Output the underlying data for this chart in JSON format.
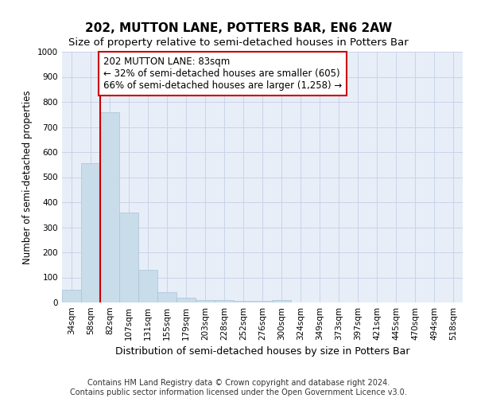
{
  "title": "202, MUTTON LANE, POTTERS BAR, EN6 2AW",
  "subtitle": "Size of property relative to semi-detached houses in Potters Bar",
  "xlabel": "Distribution of semi-detached houses by size in Potters Bar",
  "ylabel": "Number of semi-detached properties",
  "categories": [
    "34sqm",
    "58sqm",
    "82sqm",
    "107sqm",
    "131sqm",
    "155sqm",
    "179sqm",
    "203sqm",
    "228sqm",
    "252sqm",
    "276sqm",
    "300sqm",
    "324sqm",
    "349sqm",
    "373sqm",
    "397sqm",
    "421sqm",
    "445sqm",
    "470sqm",
    "494sqm",
    "518sqm"
  ],
  "values": [
    50,
    555,
    760,
    360,
    130,
    40,
    18,
    10,
    8,
    7,
    7,
    10,
    0,
    0,
    0,
    0,
    0,
    0,
    0,
    0,
    0
  ],
  "bar_color": "#c8dcea",
  "bar_edgecolor": "#a8c4d8",
  "vline_color": "#cc0000",
  "vline_x_index": 2,
  "annotation_text": "202 MUTTON LANE: 83sqm\n← 32% of semi-detached houses are smaller (605)\n66% of semi-detached houses are larger (1,258) →",
  "annotation_box_facecolor": "#ffffff",
  "annotation_box_edgecolor": "#cc0000",
  "ylim": [
    0,
    1000
  ],
  "yticks": [
    0,
    100,
    200,
    300,
    400,
    500,
    600,
    700,
    800,
    900,
    1000
  ],
  "grid_color": "#c8d4e8",
  "background_color": "#e8eef8",
  "footer_line1": "Contains HM Land Registry data © Crown copyright and database right 2024.",
  "footer_line2": "Contains public sector information licensed under the Open Government Licence v3.0.",
  "title_fontsize": 11,
  "subtitle_fontsize": 9.5,
  "xlabel_fontsize": 9,
  "ylabel_fontsize": 8.5,
  "tick_fontsize": 7.5,
  "annotation_fontsize": 8.5,
  "footer_fontsize": 7
}
